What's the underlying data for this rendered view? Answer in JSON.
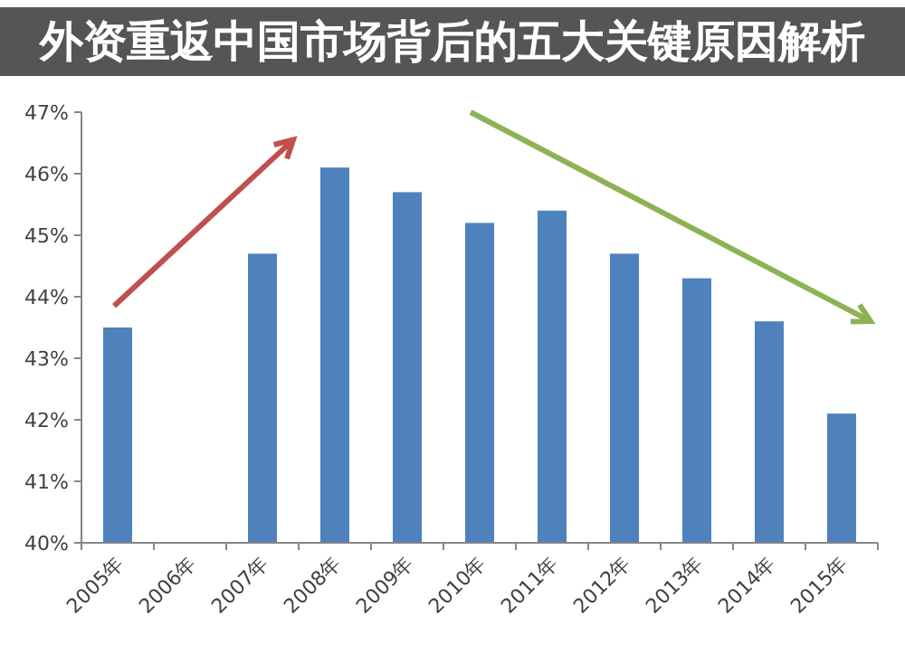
{
  "chart_data": {
    "type": "bar",
    "title": "外资重返中国市场背后的五大关键原因解析",
    "categories": [
      "2005年",
      "2006年",
      "2007年",
      "2008年",
      "2009年",
      "2010年",
      "2011年",
      "2012年",
      "2013年",
      "2014年",
      "2015年"
    ],
    "values": [
      43.5,
      null,
      44.7,
      46.1,
      45.7,
      45.2,
      45.4,
      44.7,
      44.3,
      43.6,
      42.1
    ],
    "color": "#4f81bd",
    "ylim": [
      40,
      47
    ],
    "yticks": [
      {
        "value": 40,
        "label": "40%"
      },
      {
        "value": 41,
        "label": "41%"
      },
      {
        "value": 42,
        "label": "42%"
      },
      {
        "value": 43,
        "label": "43%"
      },
      {
        "value": 44,
        "label": "44%"
      },
      {
        "value": 45,
        "label": "45%"
      },
      {
        "value": 46,
        "label": "46%"
      },
      {
        "value": 47,
        "label": "47%"
      }
    ],
    "grid": false
  }
}
